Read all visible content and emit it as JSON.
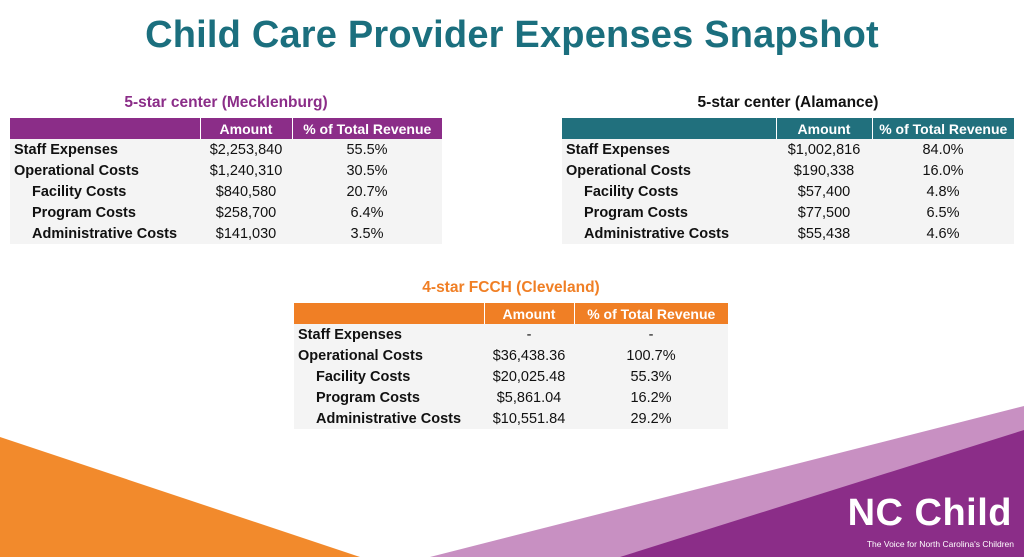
{
  "title": "Child Care Provider Expenses Snapshot",
  "colors": {
    "purple": "#8b2d88",
    "teal": "#21707d",
    "orange": "#f07f25",
    "title": "#1b6f7e"
  },
  "tables": {
    "mecklenburg": {
      "title": "5-star center (Mecklenburg)",
      "headers": [
        "",
        "Amount",
        "% of Total Revenue"
      ],
      "rows": [
        {
          "label": "Staff Expenses",
          "amount": "$2,253,840",
          "pct": "55.5%"
        },
        {
          "label": "Operational Costs",
          "amount": "$1,240,310",
          "pct": "30.5%"
        },
        {
          "label": "Facility Costs",
          "amount": "$840,580",
          "pct": "20.7%"
        },
        {
          "label": "Program Costs",
          "amount": "$258,700",
          "pct": "6.4%"
        },
        {
          "label": "Administrative Costs",
          "amount": "$141,030",
          "pct": "3.5%"
        }
      ]
    },
    "alamance": {
      "title": "5-star center (Alamance)",
      "headers": [
        "",
        "Amount",
        "% of Total Revenue"
      ],
      "rows": [
        {
          "label": "Staff Expenses",
          "amount": "$1,002,816",
          "pct": "84.0%"
        },
        {
          "label": "Operational Costs",
          "amount": "$190,338",
          "pct": "16.0%"
        },
        {
          "label": "Facility Costs",
          "amount": "$57,400",
          "pct": "4.8%"
        },
        {
          "label": "Program Costs",
          "amount": "$77,500",
          "pct": "6.5%"
        },
        {
          "label": "Administrative Costs",
          "amount": "$55,438",
          "pct": "4.6%"
        }
      ]
    },
    "cleveland": {
      "title": "4-star FCCH (Cleveland)",
      "headers": [
        "",
        "Amount",
        "% of Total Revenue"
      ],
      "rows": [
        {
          "label": "Staff Expenses",
          "amount": "-",
          "pct": "-"
        },
        {
          "label": "Operational Costs",
          "amount": "$36,438.36",
          "pct": "100.7%"
        },
        {
          "label": "Facility Costs",
          "amount": "$20,025.48",
          "pct": "55.3%"
        },
        {
          "label": "Program Costs",
          "amount": "$5,861.04",
          "pct": "16.2%"
        },
        {
          "label": "Administrative Costs",
          "amount": "$10,551.84",
          "pct": "29.2%"
        }
      ]
    }
  },
  "logo": {
    "name": "NC Child",
    "tagline": "The Voice for North Carolina's Children"
  }
}
